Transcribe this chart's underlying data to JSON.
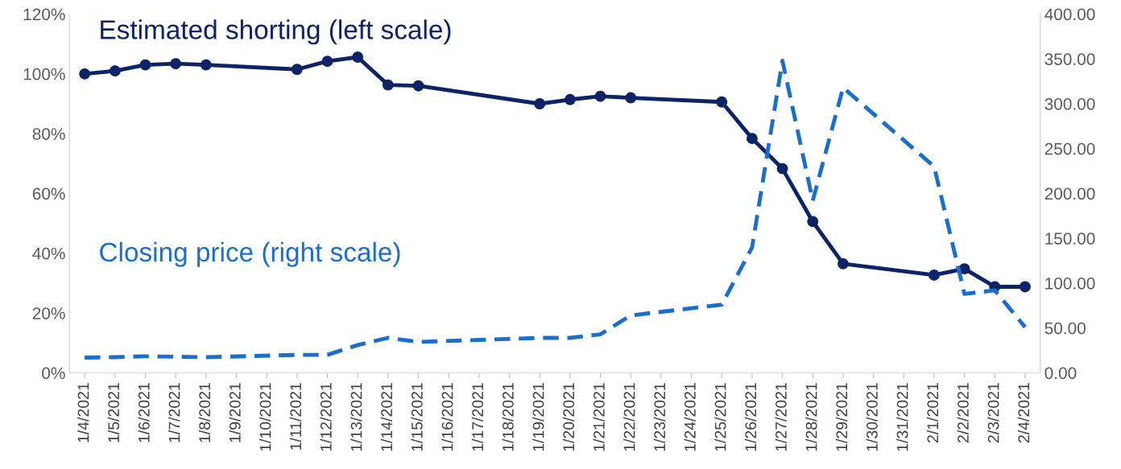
{
  "chart_data": {
    "type": "line",
    "categories": [
      "1/4/2021",
      "1/5/2021",
      "1/6/2021",
      "1/7/2021",
      "1/8/2021",
      "1/9/2021",
      "1/10/2021",
      "1/11/2021",
      "1/12/2021",
      "1/13/2021",
      "1/14/2021",
      "1/15/2021",
      "1/16/2021",
      "1/17/2021",
      "1/18/2021",
      "1/19/2021",
      "1/20/2021",
      "1/21/2021",
      "1/22/2021",
      "1/23/2021",
      "1/24/2021",
      "1/25/2021",
      "1/26/2021",
      "1/27/2021",
      "1/28/2021",
      "1/29/2021",
      "1/30/2021",
      "1/31/2021",
      "2/1/2021",
      "2/2/2021",
      "2/3/2021",
      "2/4/2021"
    ],
    "series": [
      {
        "name": "Estimated shorting (left scale)",
        "color": "#0c2366",
        "marker": "circle",
        "line_style": "solid",
        "values": [
          100,
          101,
          103,
          103.4,
          103,
          null,
          null,
          101.5,
          104.2,
          105.6,
          96.3,
          96,
          null,
          null,
          null,
          90,
          91.4,
          92.5,
          92,
          null,
          null,
          90.6,
          78.4,
          68.3,
          50.6,
          36.5,
          null,
          null,
          32.7,
          34.8,
          28.8,
          28.8
        ]
      },
      {
        "name": "Closing price (right scale)",
        "color": "#1a6fcc",
        "marker": "none",
        "line_style": "dashed",
        "axis": "y2",
        "values": [
          17,
          17.5,
          18.5,
          18,
          17.5,
          null,
          null,
          20,
          20,
          31,
          39,
          34.5,
          null,
          null,
          null,
          39,
          39,
          43,
          64,
          null,
          null,
          76,
          140,
          348,
          192,
          318,
          null,
          null,
          230,
          88,
          92,
          51
        ]
      }
    ],
    "ylim": [
      0,
      120
    ],
    "yticks": [
      {
        "value": 0,
        "label": "0%"
      },
      {
        "value": 20,
        "label": "20%"
      },
      {
        "value": 40,
        "label": "40%"
      },
      {
        "value": 60,
        "label": "60%"
      },
      {
        "value": 80,
        "label": "80%"
      },
      {
        "value": 100,
        "label": "100%"
      },
      {
        "value": 120,
        "label": "120%"
      }
    ],
    "y2lim": [
      0,
      400
    ],
    "y2ticks": [
      {
        "value": 0,
        "label": "0.00"
      },
      {
        "value": 50,
        "label": "50.00"
      },
      {
        "value": 100,
        "label": "100.00"
      },
      {
        "value": 150,
        "label": "150.00"
      },
      {
        "value": 200,
        "label": "200.00"
      },
      {
        "value": 250,
        "label": "250.00"
      },
      {
        "value": 300,
        "label": "300.00"
      },
      {
        "value": 350,
        "label": "350.00"
      },
      {
        "value": 400,
        "label": "400.00"
      }
    ],
    "grid": false,
    "legend": false
  }
}
